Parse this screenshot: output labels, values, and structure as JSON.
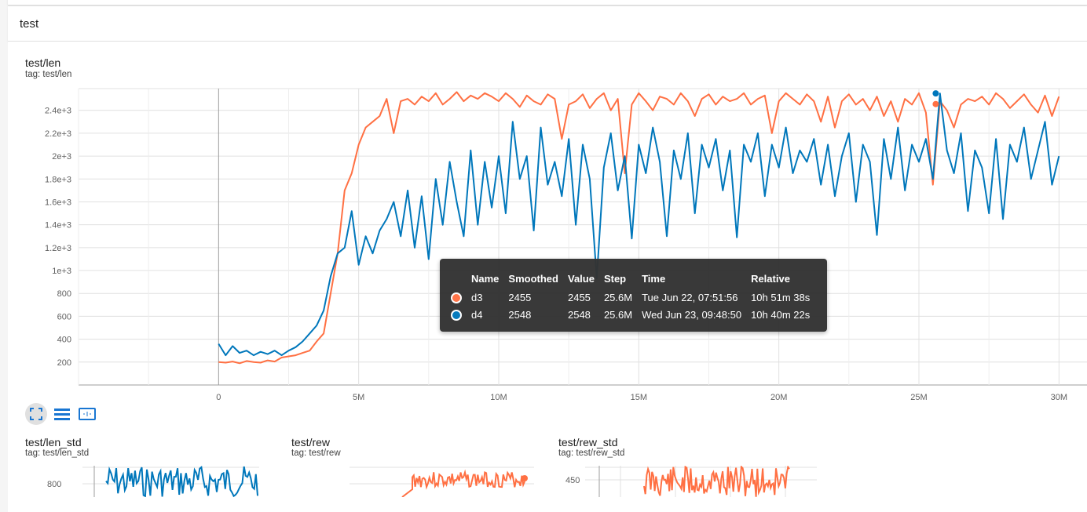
{
  "header": {
    "title": "test"
  },
  "main_chart": {
    "title": "test/len",
    "tag": "tag: test/len"
  },
  "toolbar": {
    "icons": [
      "fit-domain-icon",
      "list-icon",
      "expand-icon"
    ]
  },
  "tooltip": {
    "columns": [
      "Name",
      "Smoothed",
      "Value",
      "Step",
      "Time",
      "Relative"
    ],
    "rows": [
      {
        "name": "d3",
        "smoothed": "2455",
        "value": "2455",
        "step": "25.6M",
        "time": "Tue Jun 22, 07:51:56",
        "relative": "10h 51m 38s",
        "color": "#ff7043"
      },
      {
        "name": "d4",
        "smoothed": "2548",
        "value": "2548",
        "step": "25.6M",
        "time": "Wed Jun 23, 09:48:50",
        "relative": "10h 40m 22s",
        "color": "#0077bb"
      }
    ]
  },
  "bottom_charts": [
    {
      "title": "test/len_std",
      "tag": "tag: test/len_std",
      "ytick": "800"
    },
    {
      "title": "test/rew",
      "tag": "tag: test/rew"
    },
    {
      "title": "test/rew_std",
      "tag": "tag: test/rew_std",
      "ytick": "450"
    }
  ],
  "chart_data": {
    "type": "line",
    "title": "test/len",
    "xlim": [
      -5000000,
      31000000
    ],
    "ylim": [
      0,
      2590
    ],
    "grid": true,
    "xticks": [
      0,
      5000000,
      10000000,
      15000000,
      20000000,
      25000000,
      30000000
    ],
    "xtick_labels": [
      "0",
      "5M",
      "10M",
      "15M",
      "20M",
      "25M",
      "30M"
    ],
    "yticks": [
      200,
      400,
      600,
      800,
      1000,
      1200,
      1400,
      1600,
      1800,
      2000,
      2200,
      2400
    ],
    "ytick_labels": [
      "200",
      "400",
      "600",
      "800",
      "1e+3",
      "1.2e+3",
      "1.4e+3",
      "1.6e+3",
      "1.8e+3",
      "2e+3",
      "2.2e+3",
      "2.4e+3"
    ],
    "x_unit": "M",
    "x": [
      0,
      0.25,
      0.5,
      0.75,
      1,
      1.25,
      1.5,
      1.75,
      2,
      2.25,
      2.5,
      2.75,
      3,
      3.25,
      3.5,
      3.75,
      4,
      4.25,
      4.5,
      4.75,
      5,
      5.25,
      5.5,
      5.75,
      6,
      6.25,
      6.5,
      6.75,
      7,
      7.25,
      7.5,
      7.75,
      8,
      8.25,
      8.5,
      8.75,
      9,
      9.25,
      9.5,
      9.75,
      10,
      10.25,
      10.5,
      10.75,
      11,
      11.25,
      11.5,
      11.75,
      12,
      12.25,
      12.5,
      12.75,
      13,
      13.25,
      13.5,
      13.75,
      14,
      14.25,
      14.5,
      14.75,
      15,
      15.25,
      15.5,
      15.75,
      16,
      16.25,
      16.5,
      16.75,
      17,
      17.25,
      17.5,
      17.75,
      18,
      18.25,
      18.5,
      18.75,
      19,
      19.25,
      19.5,
      19.75,
      20,
      20.25,
      20.5,
      20.75,
      21,
      21.25,
      21.5,
      21.75,
      22,
      22.25,
      22.5,
      22.75,
      23,
      23.25,
      23.5,
      23.75,
      24,
      24.25,
      24.5,
      24.75,
      25,
      25.25,
      25.5,
      25.75,
      26,
      26.25,
      26.5,
      26.75,
      27,
      27.25,
      27.5,
      27.75,
      28,
      28.25,
      28.5,
      28.75,
      29,
      29.25,
      29.5,
      29.75,
      30
    ],
    "series": [
      {
        "name": "d3",
        "color": "#ff7043",
        "values": [
          200,
          195,
          205,
          190,
          210,
          200,
          195,
          215,
          205,
          240,
          250,
          260,
          280,
          300,
          380,
          450,
          800,
          1150,
          1700,
          1850,
          2100,
          2250,
          2300,
          2350,
          2500,
          2200,
          2480,
          2500,
          2450,
          2520,
          2480,
          2550,
          2450,
          2500,
          2560,
          2480,
          2530,
          2500,
          2550,
          2520,
          2480,
          2550,
          2500,
          2430,
          2530,
          2480,
          2450,
          2540,
          2500,
          2150,
          2450,
          2480,
          2540,
          2420,
          2500,
          2550,
          2400,
          2500,
          1850,
          2450,
          2550,
          2480,
          2400,
          2520,
          2500,
          2450,
          2550,
          2480,
          2350,
          2500,
          2540,
          2450,
          2520,
          2480,
          2500,
          2550,
          2450,
          2500,
          2530,
          2200,
          2480,
          2550,
          2500,
          2450,
          2540,
          2480,
          2300,
          2520,
          2250,
          2480,
          2540,
          2450,
          2500,
          2400,
          2520,
          2350,
          2480,
          2300,
          2500,
          2450,
          2550,
          2380,
          1750,
          2480,
          2400,
          2250,
          2450,
          2500,
          2480,
          2520,
          2450,
          2550,
          2500,
          2420,
          2480,
          2540,
          2450,
          2380,
          2530,
          2350,
          2520
        ],
        "marker": {
          "x": 25.6,
          "y": 2455
        }
      },
      {
        "name": "d4",
        "color": "#0077bb",
        "values": [
          360,
          260,
          340,
          280,
          300,
          260,
          290,
          270,
          300,
          260,
          300,
          330,
          380,
          450,
          520,
          650,
          950,
          1150,
          1200,
          1520,
          1050,
          1300,
          1150,
          1350,
          1450,
          1600,
          1300,
          1700,
          1200,
          1650,
          1100,
          1800,
          1400,
          1950,
          1600,
          1300,
          2050,
          1400,
          1950,
          1550,
          2000,
          1500,
          2300,
          1800,
          2000,
          1350,
          2250,
          1750,
          1950,
          1650,
          2150,
          1400,
          2100,
          1800,
          930,
          1900,
          2200,
          1700,
          2000,
          1280,
          2100,
          1850,
          2250,
          1950,
          1300,
          2050,
          1800,
          2200,
          1500,
          2100,
          1900,
          2150,
          1700,
          2050,
          1290,
          2100,
          1950,
          2200,
          1650,
          2100,
          1900,
          2250,
          1850,
          2050,
          1950,
          2150,
          1750,
          2100,
          1650,
          2000,
          2200,
          1600,
          2100,
          1950,
          1310,
          2150,
          1800,
          2250,
          1700,
          2100,
          1950,
          2150,
          1800,
          2548,
          2050,
          1850,
          2200,
          1520,
          2050,
          1900,
          1500,
          2150,
          1450,
          2100,
          1950,
          2250,
          1800,
          2050,
          2300,
          1750,
          2000
        ],
        "marker": {
          "x": 25.6,
          "y": 2548
        }
      }
    ]
  }
}
